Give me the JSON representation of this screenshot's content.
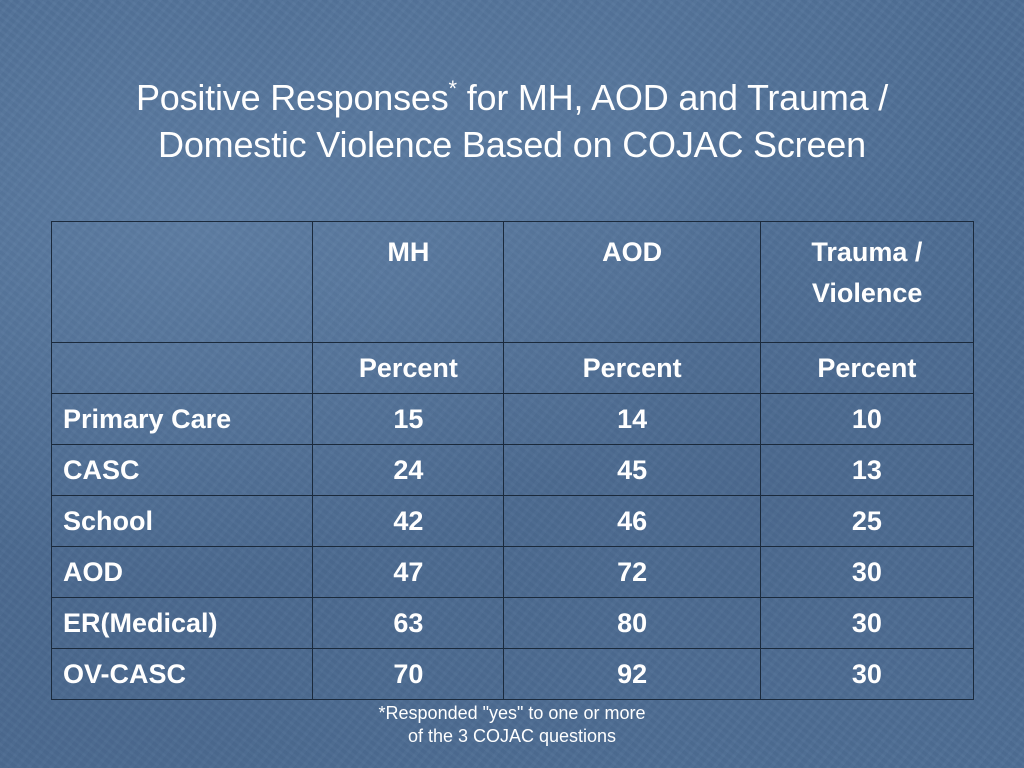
{
  "slide": {
    "title_part1": "Positive Responses",
    "title_asterisk": "*",
    "title_part2": " for MH, AOD and Trauma /",
    "title_line2": "Domestic Violence Based on COJAC Screen"
  },
  "table": {
    "header_empty": "",
    "columns": [
      "MH",
      "AOD",
      "Trauma /\nViolence"
    ],
    "subheader_empty": "",
    "subheader": [
      "Percent",
      "Percent",
      "Percent"
    ],
    "rows": [
      {
        "label": "Primary Care",
        "values": [
          "15",
          "14",
          "10"
        ]
      },
      {
        "label": "CASC",
        "values": [
          "24",
          "45",
          "13"
        ]
      },
      {
        "label": "School",
        "values": [
          "42",
          "46",
          "25"
        ]
      },
      {
        "label": "AOD",
        "values": [
          "47",
          "72",
          "30"
        ]
      },
      {
        "label": "ER(Medical)",
        "values": [
          "63",
          "80",
          "30"
        ]
      },
      {
        "label": "OV-CASC",
        "values": [
          "70",
          "92",
          "30"
        ]
      }
    ]
  },
  "footnote": {
    "line1": "*Responded \"yes\" to one or more",
    "line2": "of the 3 COJAC questions"
  },
  "colors": {
    "background": "#4f6f96",
    "text": "#ffffff",
    "table_border": "#1b2a3c"
  }
}
